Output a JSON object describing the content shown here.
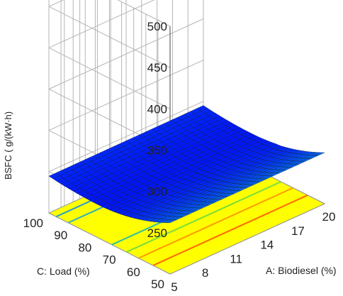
{
  "chart_data": {
    "type": "surface3d",
    "title": "",
    "zlabel": "BSFC ( g/(kW·h)",
    "xlabel": "A: Biodiesel (%)",
    "ylabel": "C: Load (%)",
    "z_ticks": [
      "250",
      "300",
      "350",
      "400",
      "450",
      "500"
    ],
    "x_ticks": [
      "5",
      "8",
      "11",
      "14",
      "17",
      "20"
    ],
    "y_ticks": [
      "50",
      "60",
      "70",
      "80",
      "90",
      "100"
    ],
    "x_range": [
      5,
      20
    ],
    "y_range": [
      50,
      100
    ],
    "z_range": [
      200,
      500
    ],
    "surface_samples": {
      "load": [
        50,
        75,
        100
      ],
      "corner_values": {
        "load_50_bio_5": 420,
        "load_75_bio_5": 250,
        "load_100_bio_5": 275,
        "load_100_bio_20": 283,
        "load_50_bio_20": 418
      },
      "minimum": {
        "load": 80,
        "value": 240
      }
    },
    "colormap": [
      "#0000ff",
      "#00ffff",
      "#00ff00",
      "#ffff00",
      "#ff0000"
    ],
    "floor_color": "#ffff00",
    "grid": true
  }
}
